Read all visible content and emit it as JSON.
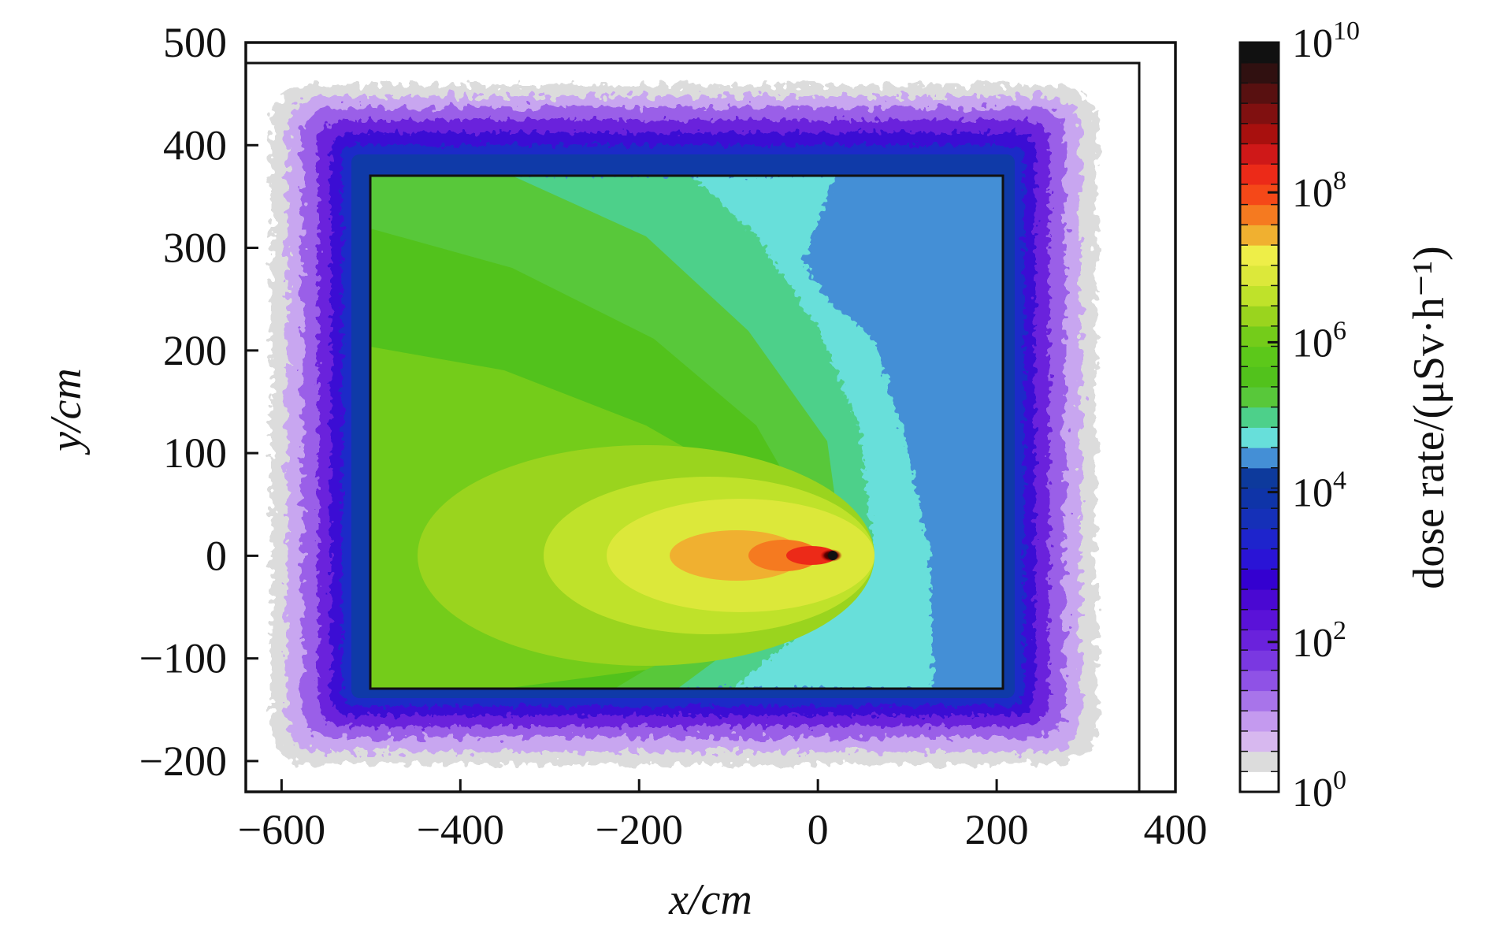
{
  "chart_data": {
    "type": "heatmap",
    "xlabel": "x/cm",
    "ylabel": "y/cm",
    "xlim": [
      -640,
      400
    ],
    "ylim": [
      -230,
      500
    ],
    "x_ticks": [
      -600,
      -400,
      -200,
      0,
      200,
      400
    ],
    "x_tick_labels": [
      "−600",
      "−400",
      "−200",
      "0",
      "200",
      "400"
    ],
    "y_ticks": [
      500,
      400,
      300,
      200,
      100,
      0,
      -100,
      -200
    ],
    "y_tick_labels": [
      "500",
      "400",
      "300",
      "200",
      "100",
      "0",
      "−100",
      "−200"
    ],
    "source_point": {
      "x": 10,
      "y": 0
    },
    "room_walls": {
      "x_min": -500,
      "x_max": 200,
      "y_min": -130,
      "y_max": 370
    },
    "outer_boundary": {
      "x_max": 350,
      "y_max": 480
    },
    "colorbar": {
      "label": "dose rate/(μSv·h⁻¹)",
      "scale": "log",
      "range": [
        1,
        10000000000
      ],
      "ticks": [
        {
          "base": "10",
          "exp": "0"
        },
        {
          "base": "10",
          "exp": "2"
        },
        {
          "base": "10",
          "exp": "4"
        },
        {
          "base": "10",
          "exp": "6"
        },
        {
          "base": "10",
          "exp": "8"
        },
        {
          "base": "10",
          "exp": "10"
        }
      ],
      "colors": [
        "#ffffff",
        "#dcdcdc",
        "#d7b8ef",
        "#c49aef",
        "#a874ea",
        "#8f52e6",
        "#7a38e1",
        "#6a22dc",
        "#5a12d8",
        "#4a08d2",
        "#3400d0",
        "#2a14d6",
        "#1e24cc",
        "#1530b8",
        "#0f34a8",
        "#0d3a9c",
        "#448fd6",
        "#67dfda",
        "#4dd08a",
        "#58c83a",
        "#52c21c",
        "#5cc81a",
        "#74cc1a",
        "#9ad41e",
        "#bfe22a",
        "#dce83a",
        "#eeee48",
        "#f0b030",
        "#f57a20",
        "#f54818",
        "#ec2a18",
        "#cf1818",
        "#a8100e",
        "#801010",
        "#581010",
        "#301010",
        "#111111"
      ]
    }
  }
}
